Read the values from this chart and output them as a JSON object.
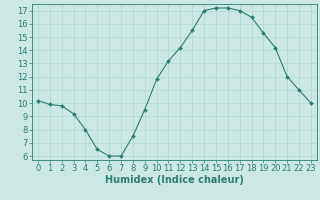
{
  "x": [
    0,
    1,
    2,
    3,
    4,
    5,
    6,
    7,
    8,
    9,
    10,
    11,
    12,
    13,
    14,
    15,
    16,
    17,
    18,
    19,
    20,
    21,
    22,
    23
  ],
  "y": [
    10.2,
    9.9,
    9.8,
    9.2,
    8.0,
    6.5,
    6.0,
    6.0,
    7.5,
    9.5,
    11.8,
    13.2,
    14.2,
    15.5,
    17.0,
    17.2,
    17.2,
    17.0,
    16.5,
    15.3,
    14.2,
    12.0,
    11.0,
    10.0
  ],
  "line_color": "#2e7d6e",
  "marker": "D",
  "marker_size": 2,
  "bg_color": "#cce8e4",
  "grid_color": "#b0d8d0",
  "xlabel": "Humidex (Indice chaleur)",
  "xlim": [
    -0.5,
    23.5
  ],
  "ylim": [
    5.7,
    17.5
  ],
  "yticks": [
    6,
    7,
    8,
    9,
    10,
    11,
    12,
    13,
    14,
    15,
    16,
    17
  ],
  "xticks": [
    0,
    1,
    2,
    3,
    4,
    5,
    6,
    7,
    8,
    9,
    10,
    11,
    12,
    13,
    14,
    15,
    16,
    17,
    18,
    19,
    20,
    21,
    22,
    23
  ],
  "xlabel_fontsize": 7,
  "tick_fontsize": 6
}
